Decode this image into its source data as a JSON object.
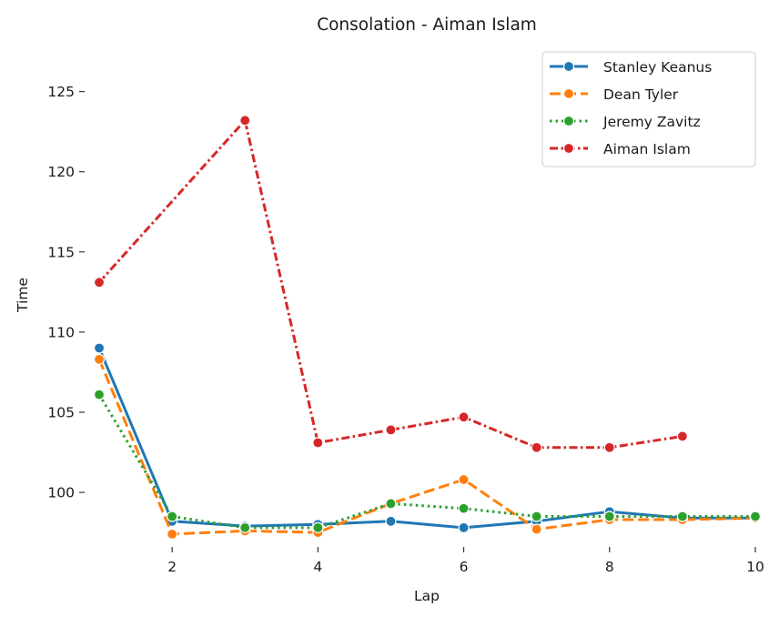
{
  "chart_data": {
    "type": "line",
    "title": "Consolation - Aiman Islam",
    "xlabel": "Lap",
    "ylabel": "Time",
    "xlim": [
      0.8,
      10.2
    ],
    "ylim": [
      96.6,
      128.1
    ],
    "x_ticks": [
      2,
      4,
      6,
      8,
      10
    ],
    "y_ticks": [
      100,
      105,
      110,
      115,
      120,
      125
    ],
    "grid": false,
    "legend_position": "top-right",
    "series": [
      {
        "name": "Stanley Keanus",
        "color": "#1f77b4",
        "dash": "solid",
        "x": [
          1,
          2,
          3,
          4,
          5,
          6,
          7,
          8,
          9,
          10
        ],
        "values": [
          109.0,
          98.2,
          97.9,
          98.0,
          98.2,
          97.8,
          98.2,
          98.8,
          98.4,
          98.4
        ]
      },
      {
        "name": "Dean Tyler",
        "color": "#ff7f0e",
        "dash": "dashed",
        "x": [
          1,
          2,
          3,
          4,
          5,
          6,
          7,
          8,
          9,
          10
        ],
        "values": [
          108.3,
          97.4,
          97.6,
          97.5,
          99.3,
          100.8,
          97.7,
          98.3,
          98.3,
          98.4
        ]
      },
      {
        "name": "Jeremy Zavitz",
        "color": "#2ca02c",
        "dash": "dotted",
        "x": [
          1,
          2,
          3,
          4,
          5,
          6,
          7,
          8,
          9,
          10
        ],
        "values": [
          106.1,
          98.5,
          97.8,
          97.8,
          99.3,
          99.0,
          98.5,
          98.5,
          98.5,
          98.5
        ]
      },
      {
        "name": "Aiman Islam",
        "color": "#d62728",
        "dash": "dashdot",
        "x": [
          1,
          3,
          4,
          5,
          6,
          7,
          8,
          9
        ],
        "values": [
          113.1,
          123.2,
          103.1,
          103.9,
          104.7,
          102.8,
          102.8,
          103.5
        ]
      }
    ]
  }
}
